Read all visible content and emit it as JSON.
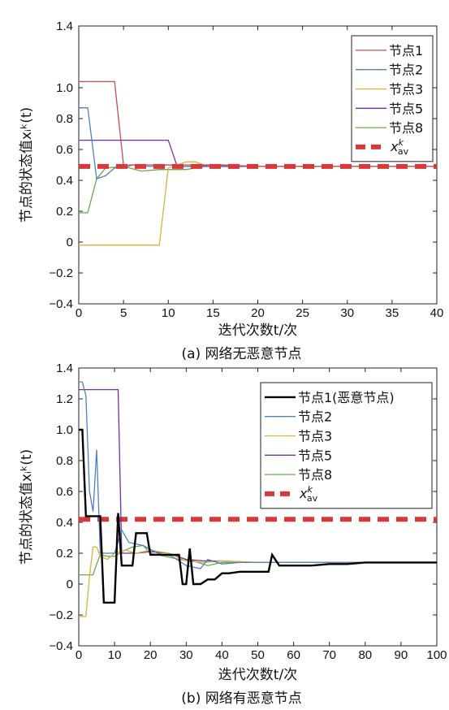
{
  "chart_data": [
    {
      "type": "line",
      "caption": "(a) 网络无恶意节点",
      "xlabel": "迭代次数t/次",
      "ylabel": "节点的状态值xᵢᵏ(t)",
      "xlim": [
        0,
        40
      ],
      "ylim": [
        -0.4,
        1.4
      ],
      "xticks": [
        0,
        5,
        10,
        15,
        20,
        25,
        30,
        35,
        40
      ],
      "yticks": [
        -0.4,
        -0.2,
        0,
        0.2,
        0.4,
        0.6,
        0.8,
        1.0,
        1.4
      ],
      "ytick_labels": [
        "−0.4",
        "−0.2",
        "0",
        "0.2",
        "0.4",
        "0.6",
        "0.8",
        "1.0",
        "1.4"
      ],
      "legend_position": "top-right",
      "series": [
        {
          "name": "节点1",
          "color": "#c0504d",
          "width": 1.3,
          "x": [
            0,
            3,
            4,
            5,
            7,
            9,
            11,
            13,
            16,
            20,
            40
          ],
          "y": [
            1.04,
            1.04,
            1.04,
            0.5,
            0.5,
            0.5,
            0.5,
            0.5,
            0.5,
            0.49,
            0.49
          ]
        },
        {
          "name": "节点2",
          "color": "#4f81bd",
          "width": 1.3,
          "x": [
            0,
            1,
            2,
            3,
            4,
            5,
            6,
            8,
            10,
            12,
            15,
            20,
            40
          ],
          "y": [
            0.87,
            0.87,
            0.41,
            0.43,
            0.48,
            0.48,
            0.5,
            0.49,
            0.5,
            0.49,
            0.5,
            0.49,
            0.49
          ]
        },
        {
          "name": "节点3",
          "color": "#d4b33c",
          "width": 1.3,
          "x": [
            0,
            5,
            9,
            10,
            12,
            13,
            14,
            16,
            20,
            40
          ],
          "y": [
            -0.02,
            -0.02,
            -0.02,
            0.48,
            0.52,
            0.52,
            0.5,
            0.5,
            0.49,
            0.49
          ]
        },
        {
          "name": "节点5",
          "color": "#7030a0",
          "width": 1.3,
          "x": [
            0,
            5,
            10,
            11,
            13,
            15,
            20,
            40
          ],
          "y": [
            0.66,
            0.66,
            0.66,
            0.49,
            0.49,
            0.49,
            0.49,
            0.49
          ]
        },
        {
          "name": "节点8",
          "color": "#6aa84f",
          "width": 1.3,
          "x": [
            0,
            1,
            2,
            3,
            5,
            7,
            9,
            12,
            14,
            16,
            20,
            40
          ],
          "y": [
            0.19,
            0.19,
            0.41,
            0.48,
            0.49,
            0.46,
            0.47,
            0.47,
            0.49,
            0.49,
            0.49,
            0.49
          ]
        },
        {
          "name": "x_av^k",
          "color": "#d9383a",
          "width": 6,
          "dash": "14,9",
          "x": [
            0,
            40
          ],
          "y": [
            0.49,
            0.49
          ]
        }
      ]
    },
    {
      "type": "line",
      "caption": "(b) 网络有恶意节点",
      "xlabel": "迭代次数t/次",
      "ylabel": "节点的状态值xᵢᵏ(t)",
      "xlim": [
        0,
        100
      ],
      "ylim": [
        -0.4,
        1.4
      ],
      "xticks": [
        0,
        10,
        20,
        30,
        40,
        50,
        60,
        70,
        80,
        90,
        100
      ],
      "yticks": [
        -0.4,
        -0.2,
        0,
        0.2,
        0.4,
        0.6,
        0.8,
        1.0,
        1.2,
        1.4
      ],
      "ytick_labels": [
        "−0.4",
        "−0.2",
        "0",
        "0.2",
        "0.4",
        "0.6",
        "0.8",
        "1.0",
        "1.2",
        "1.4"
      ],
      "legend_position": "top-right",
      "series": [
        {
          "name": "节点1(恶意节点)",
          "color": "#000000",
          "width": 2.4,
          "x": [
            0,
            1,
            2,
            5,
            6,
            7,
            8,
            10,
            11,
            12,
            13,
            15,
            16,
            17,
            18,
            19,
            20,
            22,
            25,
            27,
            28,
            29,
            30,
            31,
            32,
            33,
            34,
            36,
            38,
            40,
            42,
            45,
            50,
            53,
            54,
            56,
            60,
            65,
            70,
            75,
            80,
            85,
            90,
            95,
            100
          ],
          "y": [
            1.0,
            1.0,
            0.44,
            0.44,
            0.44,
            -0.12,
            -0.12,
            -0.12,
            0.46,
            0.12,
            0.12,
            0.12,
            0.33,
            0.33,
            0.33,
            0.33,
            0.19,
            0.19,
            0.19,
            0.19,
            0.19,
            0.0,
            0.0,
            0.23,
            0.0,
            0.0,
            0.0,
            0.03,
            0.03,
            0.07,
            0.07,
            0.08,
            0.08,
            0.08,
            0.19,
            0.12,
            0.12,
            0.12,
            0.13,
            0.13,
            0.14,
            0.14,
            0.14,
            0.14,
            0.14
          ]
        },
        {
          "name": "节点2",
          "color": "#4f81bd",
          "width": 1.3,
          "x": [
            0,
            1,
            2,
            3,
            4,
            5,
            6,
            8,
            10,
            12,
            14,
            18,
            22,
            26,
            30,
            34,
            36,
            40,
            45,
            50,
            60,
            70,
            80,
            90,
            100
          ],
          "y": [
            1.31,
            1.31,
            1.22,
            0.6,
            0.47,
            0.87,
            0.2,
            0.2,
            0.2,
            0.35,
            0.27,
            0.25,
            0.2,
            0.18,
            0.12,
            0.1,
            0.16,
            0.13,
            0.14,
            0.14,
            0.14,
            0.14,
            0.14,
            0.14,
            0.14
          ]
        },
        {
          "name": "节点3",
          "color": "#d4b33c",
          "width": 1.3,
          "x": [
            0,
            1,
            2,
            3,
            4,
            5,
            6,
            8,
            10,
            13,
            16,
            20,
            25,
            30,
            35,
            40,
            50,
            60,
            70,
            80,
            90,
            100
          ],
          "y": [
            -0.21,
            -0.21,
            -0.21,
            0.05,
            0.24,
            0.24,
            0.18,
            0.16,
            0.2,
            0.22,
            0.2,
            0.22,
            0.2,
            0.15,
            0.14,
            0.15,
            0.14,
            0.14,
            0.14,
            0.14,
            0.14,
            0.14
          ]
        },
        {
          "name": "节点5",
          "color": "#7030a0",
          "width": 1.3,
          "x": [
            0,
            1,
            2,
            3,
            4,
            8,
            10,
            11,
            12,
            14,
            16,
            20,
            25,
            30,
            35,
            40,
            50,
            60,
            70,
            80,
            90,
            100
          ],
          "y": [
            1.26,
            1.26,
            1.26,
            1.26,
            1.26,
            1.26,
            1.26,
            1.26,
            0.2,
            0.2,
            0.2,
            0.21,
            0.2,
            0.16,
            0.15,
            0.15,
            0.14,
            0.14,
            0.14,
            0.14,
            0.14,
            0.14
          ]
        },
        {
          "name": "节点8",
          "color": "#6aa84f",
          "width": 1.3,
          "x": [
            0,
            2,
            3,
            4,
            5,
            6,
            8,
            10,
            12,
            15,
            18,
            20,
            24,
            28,
            32,
            36,
            40,
            50,
            60,
            70,
            80,
            90,
            100
          ],
          "y": [
            0.06,
            0.06,
            0.06,
            0.06,
            0.13,
            0.19,
            0.18,
            0.18,
            0.21,
            0.24,
            0.25,
            0.2,
            0.18,
            0.16,
            0.15,
            0.12,
            0.14,
            0.14,
            0.14,
            0.14,
            0.14,
            0.14,
            0.14
          ]
        },
        {
          "name": "x_av^k",
          "color": "#d9383a",
          "width": 6,
          "dash": "14,9",
          "x": [
            0,
            100
          ],
          "y": [
            0.42,
            0.42
          ]
        }
      ]
    }
  ]
}
